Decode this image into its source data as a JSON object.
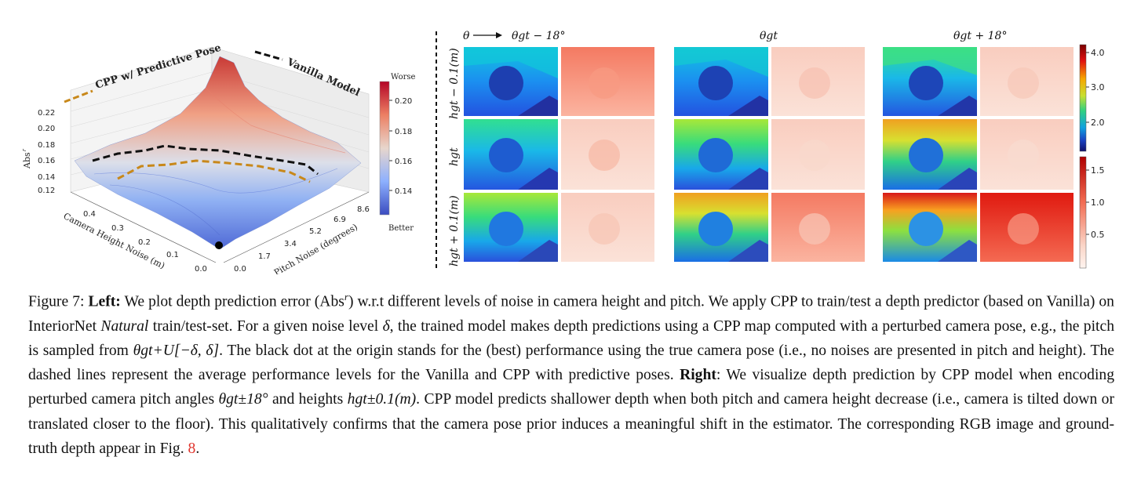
{
  "left_plot": {
    "legend_cpp": "CPP w/ Predictive Pose",
    "legend_vanilla": "Vanilla Model",
    "z_label": "Abs",
    "z_label_sup": "r",
    "z_ticks": [
      "0.22",
      "0.20",
      "0.18",
      "0.16",
      "0.14",
      "0.12"
    ],
    "x_label": "Camera Height Noise (m)",
    "x_ticks": [
      "0.4",
      "0.3",
      "0.2",
      "0.1",
      "0.0"
    ],
    "y_label": "Pitch Noise (degrees)",
    "y_ticks": [
      "0.0",
      "1.7",
      "3.4",
      "5.2",
      "6.9",
      "8.6"
    ],
    "colorbar_top": "Worse",
    "colorbar_bottom": "Better",
    "colorbar_ticks": [
      "0.20",
      "0.18",
      "0.16",
      "0.14"
    ],
    "colors": {
      "cpp_line": "#c8881a",
      "vanilla_line": "#111111",
      "high": "#c81e2a",
      "low": "#3a5fd0"
    }
  },
  "right_grid": {
    "theta_label": "θ",
    "col_headers": [
      "θgt − 18°",
      "θgt",
      "θgt + 18°"
    ],
    "row_headers": [
      "hgt − 0.1(m)",
      "hgt",
      "hgt + 0.1(m)"
    ],
    "colorbar_top_ticks": [
      "4.0",
      "3.0",
      "2.0"
    ],
    "colorbar_bottom_ticks": [
      "1.5",
      "1.0",
      "0.5"
    ]
  },
  "caption": {
    "fig_label": "Figure 7:",
    "left_label": "Left:",
    "p1": " We plot depth prediction error (Abs",
    "p1_sup": "r",
    "p2": ") w.r.t different levels of noise in camera height and pitch. We apply CPP to train/test a depth predictor (based on Vanilla) on InteriorNet ",
    "natural": "Natural",
    "p3": " train/test-set. For a given noise level ",
    "delta": "δ",
    "p4": ", the trained model makes depth predictions using a CPP map computed with a perturbed camera pose, e.g., the pitch is sampled from ",
    "theta_expr": "θgt+U[−δ, δ]",
    "p5": ". The black dot at the origin stands for the (best) performance using the true camera pose (i.e., no noises are presented in pitch and height). The dashed lines represent the average performance levels for the Vanilla and CPP with predictive poses. ",
    "right_label": "Right",
    "p6": ": We visualize depth prediction by CPP model when encoding perturbed camera pitch angles ",
    "theta_pm": "θgt±18°",
    "p7": " and heights ",
    "h_pm": "hgt±0.1(m)",
    "p8": ". CPP model predicts shallower depth when both pitch and camera height decrease (i.e., camera is tilted down or translated closer to the floor). This qualitatively confirms that the camera pose prior induces a meaningful shift in the estimator. The corresponding RGB image and ground-truth depth appear in Fig. ",
    "fig_ref": "8",
    "p9": "."
  }
}
